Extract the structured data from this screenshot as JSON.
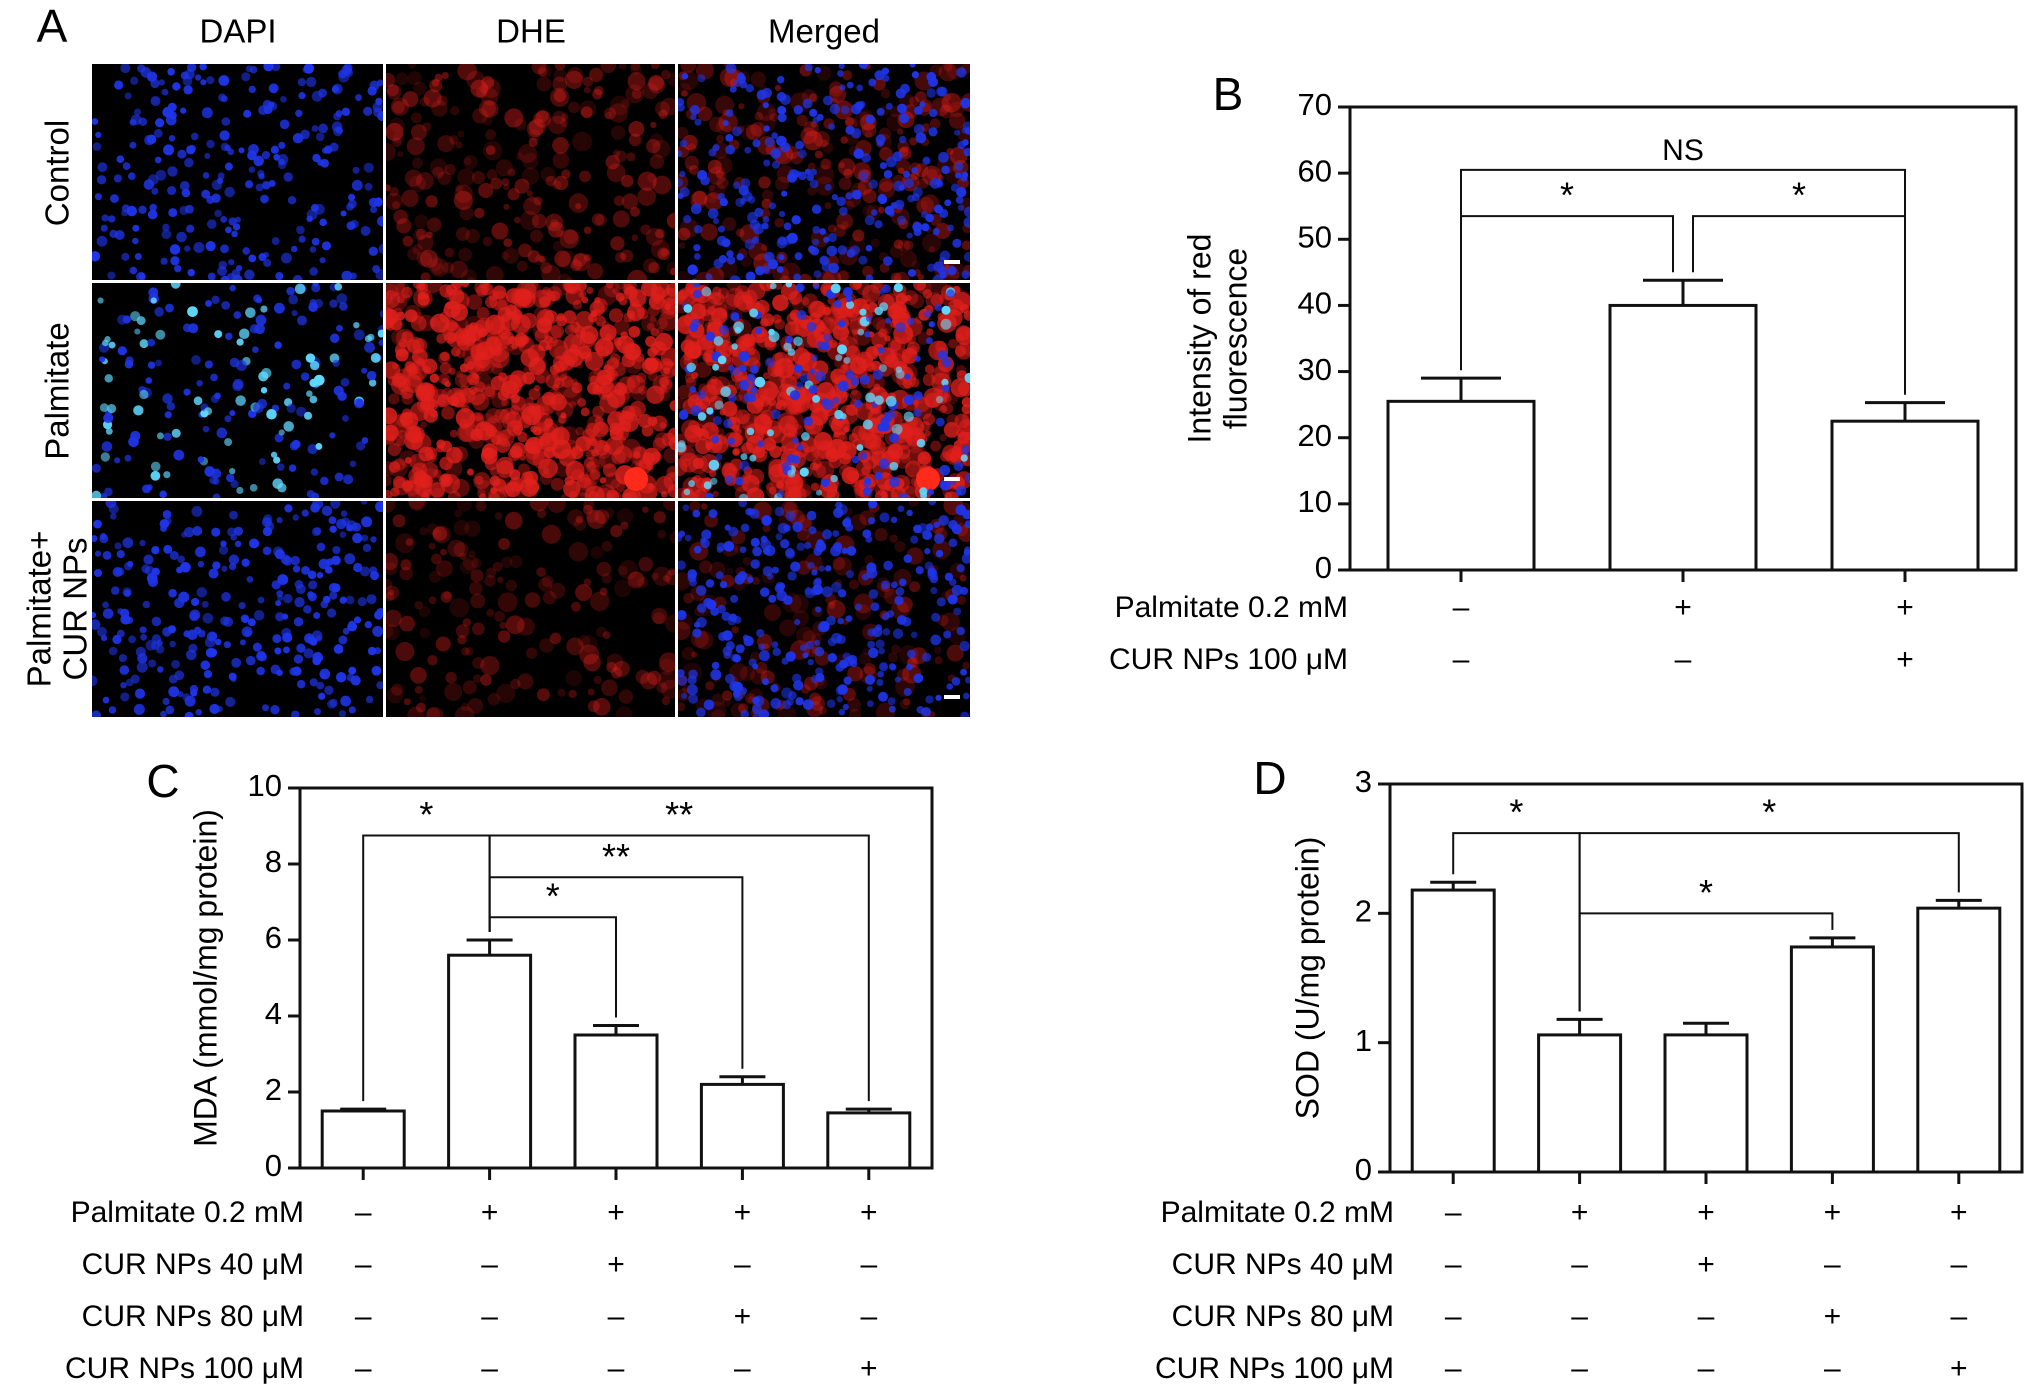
{
  "panel_A": {
    "letter": "A",
    "columns": [
      "DAPI",
      "DHE",
      "Merged"
    ],
    "rows": [
      {
        "lines": [
          "Control"
        ]
      },
      {
        "lines": [
          "Palmitate"
        ]
      },
      {
        "lines": [
          "Palmitate+",
          "CUR NPs"
        ]
      }
    ],
    "colors": {
      "dapi": "#1f35e8",
      "dhe": "#e0201c",
      "nucleus_bright": "#5fd8ff"
    }
  },
  "chart_data": [
    {
      "panel": "B",
      "type": "bar",
      "ylabel_lines": [
        "Intensity of red",
        "fluorescence"
      ],
      "ylim": [
        0,
        70
      ],
      "yticks": [
        0,
        10,
        20,
        30,
        40,
        50,
        60,
        70
      ],
      "values": [
        25.5,
        40,
        22.5
      ],
      "errors": [
        3.5,
        3.8,
        2.8
      ],
      "conditions": [
        {
          "label": "Palmitate 0.2 mM",
          "signs": [
            "–",
            "+",
            "+"
          ]
        },
        {
          "label": "CUR NPs 100 μM",
          "signs": [
            "–",
            "–",
            "+"
          ]
        }
      ],
      "significance": [
        {
          "from": 0,
          "to": 1,
          "label": "*",
          "level": 53.5
        },
        {
          "from": 1,
          "to": 2,
          "label": "*",
          "level": 53.5
        },
        {
          "from": 0,
          "to": 2,
          "label": "NS",
          "level": 60.5
        }
      ]
    },
    {
      "panel": "C",
      "type": "bar",
      "ylabel": "MDA (mmol/mg protein)",
      "ylim": [
        0,
        10
      ],
      "yticks": [
        0,
        2,
        4,
        6,
        8,
        10
      ],
      "values": [
        1.5,
        5.6,
        3.5,
        2.2,
        1.45
      ],
      "errors": [
        0.05,
        0.4,
        0.25,
        0.2,
        0.1
      ],
      "conditions": [
        {
          "label": "Palmitate 0.2 mM",
          "signs": [
            "–",
            "+",
            "+",
            "+",
            "+"
          ]
        },
        {
          "label": "CUR NPs 40 μM",
          "signs": [
            "–",
            "–",
            "+",
            "–",
            "–"
          ]
        },
        {
          "label": "CUR NPs 80 μM",
          "signs": [
            "–",
            "–",
            "–",
            "+",
            "–"
          ]
        },
        {
          "label": "CUR NPs 100 μM",
          "signs": [
            "–",
            "–",
            "–",
            "–",
            "+"
          ]
        }
      ],
      "significance": [
        {
          "from": 0,
          "to": 1,
          "label": "*",
          "level": 8.75
        },
        {
          "from": 1,
          "to": 4,
          "label": "**",
          "level": 8.75
        },
        {
          "from": 1,
          "to": 3,
          "label": "**",
          "level": 7.65
        },
        {
          "from": 1,
          "to": 2,
          "label": "*",
          "level": 6.6
        }
      ]
    },
    {
      "panel": "D",
      "type": "bar",
      "ylabel": "SOD (U/mg protein)",
      "ylim": [
        0,
        3
      ],
      "yticks": [
        0,
        1,
        2,
        3
      ],
      "values": [
        2.18,
        1.06,
        1.06,
        1.74,
        2.04
      ],
      "errors": [
        0.06,
        0.12,
        0.09,
        0.07,
        0.06
      ],
      "conditions": [
        {
          "label": "Palmitate 0.2 mM",
          "signs": [
            "–",
            "+",
            "+",
            "+",
            "+"
          ]
        },
        {
          "label": "CUR NPs 40 μM",
          "signs": [
            "–",
            "–",
            "+",
            "–",
            "–"
          ]
        },
        {
          "label": "CUR NPs 80 μM",
          "signs": [
            "–",
            "–",
            "–",
            "+",
            "–"
          ]
        },
        {
          "label": "CUR NPs 100 μM",
          "signs": [
            "–",
            "–",
            "–",
            "–",
            "+"
          ]
        }
      ],
      "significance": [
        {
          "from": 0,
          "to": 1,
          "label": "*",
          "level": 2.62
        },
        {
          "from": 1,
          "to": 4,
          "label": "*",
          "level": 2.62
        },
        {
          "from": 1,
          "to": 3,
          "label": "*",
          "level": 2.0
        }
      ]
    }
  ]
}
